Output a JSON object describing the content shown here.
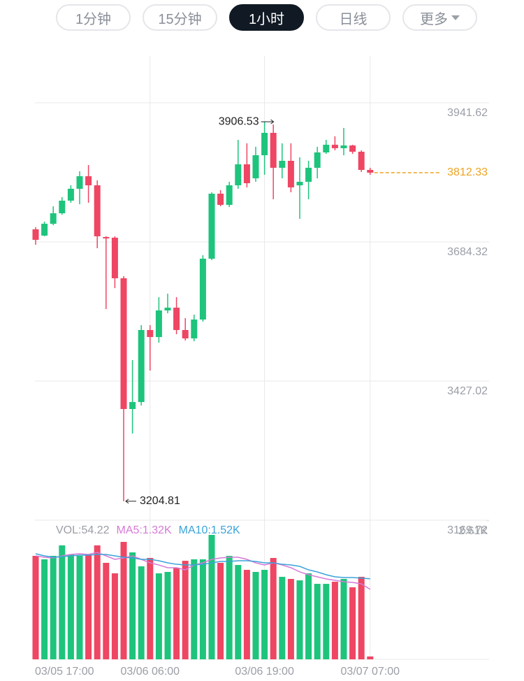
{
  "tabs": {
    "items": [
      "1分钟",
      "15分钟",
      "1小时",
      "日线",
      "更多"
    ],
    "selected": 2
  },
  "chart_data": {
    "type": "candlestick",
    "categories": [
      "03/05 17:00",
      null,
      null,
      null,
      null,
      null,
      null,
      null,
      null,
      null,
      null,
      null,
      null,
      "03/06 06:00",
      null,
      null,
      null,
      null,
      null,
      null,
      null,
      null,
      null,
      null,
      null,
      null,
      "03/06 19:00",
      null,
      null,
      null,
      null,
      null,
      null,
      null,
      null,
      null,
      null,
      null,
      "03/07 07:00"
    ],
    "open": [
      3707.6,
      3696.0,
      3717.9,
      3737.3,
      3760.6,
      3782.6,
      3805.8,
      3789.0,
      3693.4,
      3692.1,
      3617.1,
      3375.3,
      3388.2,
      3521.4,
      3508.4,
      3557.6,
      3562.7,
      3521.4,
      3505.9,
      3540.8,
      3653.3,
      3773.5,
      3752.8,
      3789.0,
      3827.8,
      3801.9,
      3844.6,
      3886.0,
      3821.4,
      3834.3,
      3789.0,
      3795.5,
      3821.4,
      3849.8,
      3864.0,
      3857.6,
      3862.7,
      3851.1,
      3817.5
    ],
    "high": [
      3711.5,
      3721.8,
      3750.2,
      3767.1,
      3789.0,
      3814.9,
      3826.5,
      3798.1,
      3694.7,
      3694.7,
      3620.9,
      3465.8,
      3530.4,
      3530.4,
      3582.1,
      3588.6,
      3582.1,
      3543.4,
      3549.8,
      3659.7,
      3776.1,
      3780.0,
      3795.5,
      3873.1,
      3866.6,
      3860.2,
      3906.53,
      3901.5,
      3866.6,
      3866.6,
      3840.8,
      3834.3,
      3860.2,
      3873.1,
      3879.6,
      3895.1,
      3864.0,
      3853.7,
      3821.4
    ],
    "low": [
      3679.1,
      3694.7,
      3715.3,
      3734.7,
      3756.7,
      3754.1,
      3756.7,
      3672.7,
      3560.2,
      3598.9,
      3204.81,
      3330.0,
      3381.8,
      3446.4,
      3498.1,
      3552.4,
      3513.6,
      3502.0,
      3500.7,
      3536.9,
      3650.7,
      3750.2,
      3748.9,
      3782.6,
      3785.2,
      3795.5,
      3808.4,
      3763.2,
      3801.9,
      3776.1,
      3727.0,
      3763.2,
      3801.9,
      3847.2,
      3853.7,
      3844.6,
      3847.2,
      3813.6,
      3808.4
    ],
    "close": [
      3688.2,
      3717.9,
      3737.3,
      3760.6,
      3782.6,
      3805.8,
      3789.0,
      3694.7,
      3690.8,
      3617.1,
      3375.3,
      3388.2,
      3521.4,
      3508.4,
      3557.6,
      3562.7,
      3521.4,
      3505.9,
      3540.8,
      3653.3,
      3773.5,
      3752.8,
      3789.0,
      3827.8,
      3792.9,
      3844.6,
      3886.0,
      3821.4,
      3834.3,
      3785.2,
      3795.5,
      3821.4,
      3849.8,
      3864.0,
      3857.6,
      3862.7,
      3851.1,
      3817.5,
      3812.33
    ],
    "up_color": "#1ec47c",
    "down_color": "#ee4663",
    "last_price_color": "#eea321",
    "ylim": [
      3169.72,
      4028.25
    ],
    "yticks": [
      3169.72,
      3427.02,
      3684.32,
      3941.62
    ],
    "grid": true,
    "volume": {
      "label": "VOL:54.22",
      "values": [
        1951,
        1885,
        1951,
        2148,
        1977,
        1951,
        1977,
        2148,
        1819,
        1621,
        2214,
        2016,
        1753,
        1911,
        1621,
        1648,
        1727,
        1858,
        1885,
        1885,
        2346,
        1819,
        1951,
        1779,
        1687,
        1648,
        1687,
        1911,
        1555,
        1516,
        1489,
        1621,
        1423,
        1423,
        1463,
        1516,
        1358,
        1555,
        54.22
      ],
      "ylim": [
        0,
        2610
      ],
      "yticks": [
        {
          "value": 2610,
          "label": "2.61K"
        }
      ],
      "series": [
        {
          "name": "MA5:1.32K",
          "color": "#d67ad6",
          "values": [
            1951,
            1924,
            1911,
            1951,
            1977,
            1990,
            1977,
            2016,
            1951,
            1885,
            1911,
            1951,
            1885,
            1819,
            1779,
            1727,
            1727,
            1687,
            1779,
            1819,
            1885,
            1911,
            1924,
            1924,
            1885,
            1819,
            1779,
            1819,
            1779,
            1727,
            1648,
            1595,
            1555,
            1516,
            1489,
            1463,
            1450,
            1423,
            1320
          ]
        },
        {
          "name": "MA10:1.52K",
          "color": "#3aa3d9",
          "values": [
            1990,
            1951,
            1924,
            1937,
            1951,
            1964,
            1964,
            1977,
            1977,
            1951,
            1924,
            1911,
            1885,
            1885,
            1858,
            1819,
            1792,
            1779,
            1779,
            1792,
            1819,
            1845,
            1845,
            1858,
            1858,
            1845,
            1819,
            1819,
            1792,
            1779,
            1753,
            1687,
            1648,
            1595,
            1555,
            1542,
            1542,
            1530,
            1520
          ]
        }
      ]
    }
  }
}
